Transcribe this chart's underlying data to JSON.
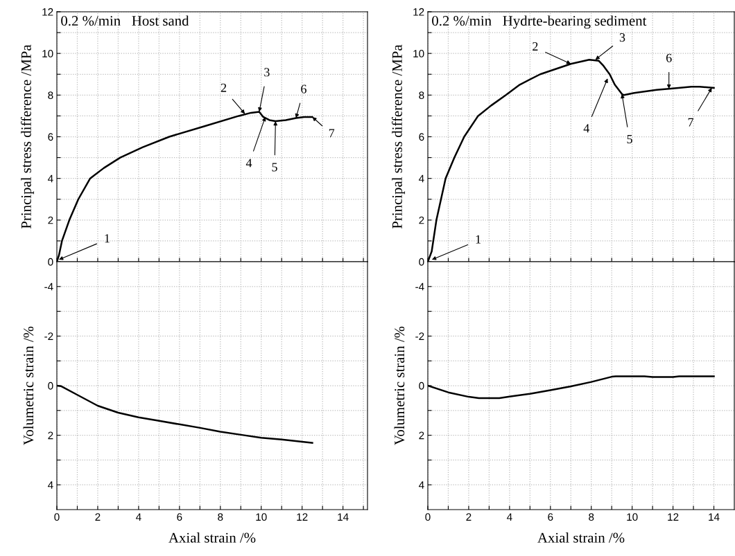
{
  "chart_data": [
    {
      "type": "line",
      "title": "0.2 %/min   Host sand",
      "ylabel": "Principal stress difference /MPa",
      "tick_labels": "y",
      "grid": true,
      "series": [
        {
          "color": "#000000",
          "x": [
            0,
            0.1,
            0.25,
            0.61,
            1.05,
            1.63,
            2.3,
            3.1,
            4.2,
            5.5,
            7.2,
            8.9,
            9.5,
            9.9,
            10.1,
            10.4,
            10.7,
            11.2,
            11.7,
            12.1,
            12.5
          ],
          "values": [
            0,
            0.3,
            1,
            2,
            3,
            4,
            4.5,
            5,
            5.5,
            6,
            6.5,
            7,
            7.15,
            7.2,
            6.95,
            6.8,
            6.75,
            6.8,
            6.9,
            6.95,
            6.95
          ]
        }
      ],
      "xlim": [
        0,
        15.2
      ],
      "ylim": [
        0,
        12
      ],
      "xticks": [
        0,
        {
          "value": 1,
          "label": null
        },
        2,
        {
          "value": 3,
          "label": null
        },
        4,
        {
          "value": 5,
          "label": null
        },
        6,
        {
          "value": 7,
          "label": null
        },
        8,
        {
          "value": 9,
          "label": null
        },
        10,
        {
          "value": 11,
          "label": null
        },
        12,
        {
          "value": 13,
          "label": null
        },
        14,
        {
          "value": 15,
          "label": null
        }
      ],
      "yticks": [
        0,
        {
          "value": 1,
          "label": null
        },
        2,
        {
          "value": 3,
          "label": null
        },
        4,
        {
          "value": 5,
          "label": null
        },
        6,
        {
          "value": 7,
          "label": null
        },
        8,
        {
          "value": 9,
          "label": null
        },
        10,
        {
          "value": 11,
          "label": null
        },
        12
      ],
      "annotations": [
        {
          "text": "1",
          "x": 0.1,
          "y": 0.1
        },
        {
          "text": "2",
          "x": 9.2,
          "y": 7.1
        },
        {
          "text": "3",
          "x": 9.9,
          "y": 7.2
        },
        {
          "text": "4",
          "x": 10.2,
          "y": 6.95
        },
        {
          "text": "5",
          "x": 10.7,
          "y": 6.75
        },
        {
          "text": "6",
          "x": 11.7,
          "y": 6.9
        },
        {
          "text": "7",
          "x": 12.5,
          "y": 6.95
        }
      ]
    },
    {
      "type": "line",
      "title": "0.2 %/min   Hydrte-bearing sediment",
      "ylabel": "Principal stress difference /MPa",
      "tick_labels": "y",
      "grid": true,
      "series": [
        {
          "color": "#000000",
          "x": [
            0,
            0.19,
            0.42,
            0.87,
            1.3,
            1.78,
            2.46,
            3.1,
            3.82,
            4.5,
            5.5,
            7.0,
            7.9,
            8.36,
            8.6,
            8.9,
            9.15,
            9.5,
            9.6,
            10.1,
            11.2,
            11.8,
            12.9,
            13.3,
            14.0
          ],
          "values": [
            0,
            0.5,
            2,
            4,
            5,
            6,
            7,
            7.5,
            8,
            8.5,
            9,
            9.5,
            9.7,
            9.65,
            9.4,
            9,
            8.5,
            8.05,
            8,
            8.1,
            8.25,
            8.3,
            8.4,
            8.4,
            8.35
          ]
        }
      ],
      "xlim": [
        0,
        15
      ],
      "ylim": [
        0,
        12
      ],
      "xticks": [
        0,
        {
          "value": 1,
          "label": null
        },
        2,
        {
          "value": 3,
          "label": null
        },
        4,
        {
          "value": 5,
          "label": null
        },
        6,
        {
          "value": 7,
          "label": null
        },
        8,
        {
          "value": 9,
          "label": null
        },
        10,
        {
          "value": 11,
          "label": null
        },
        12,
        {
          "value": 13,
          "label": null
        },
        14
      ],
      "yticks": [
        0,
        {
          "value": 1,
          "label": null
        },
        2,
        {
          "value": 3,
          "label": null
        },
        4,
        {
          "value": 5,
          "label": null
        },
        6,
        {
          "value": 7,
          "label": null
        },
        8,
        {
          "value": 9,
          "label": null
        },
        10,
        {
          "value": 11,
          "label": null
        },
        12
      ],
      "annotations": [
        {
          "text": "1",
          "x": 0.2,
          "y": 0.1
        },
        {
          "text": "2",
          "x": 7.0,
          "y": 9.5
        },
        {
          "text": "3",
          "x": 8.2,
          "y": 9.7
        },
        {
          "text": "4",
          "x": 8.8,
          "y": 8.8
        },
        {
          "text": "5",
          "x": 9.5,
          "y": 8.05
        },
        {
          "text": "6",
          "x": 11.8,
          "y": 8.3
        },
        {
          "text": "7",
          "x": 13.9,
          "y": 8.35
        }
      ]
    },
    {
      "type": "line",
      "xlabel": "Axial strain /%",
      "ylabel": "Volumetric strain /%",
      "grid": true,
      "series": [
        {
          "color": "#000000",
          "x": [
            0,
            0.2,
            1,
            2,
            3,
            4,
            5,
            6,
            7,
            8,
            9,
            10,
            11,
            12.5
          ],
          "values": [
            0,
            0.02,
            0.37,
            0.81,
            1.09,
            1.28,
            1.42,
            1.56,
            1.7,
            1.86,
            1.98,
            2.1,
            2.17,
            2.31
          ]
        }
      ],
      "xlim": [
        0,
        15.2
      ],
      "ylim": [
        5,
        -5
      ],
      "xticks": [
        0,
        {
          "value": 1,
          "label": null
        },
        2,
        {
          "value": 3,
          "label": null
        },
        4,
        {
          "value": 5,
          "label": null
        },
        6,
        {
          "value": 7,
          "label": null
        },
        8,
        {
          "value": 9,
          "label": null
        },
        10,
        {
          "value": 11,
          "label": null
        },
        12,
        {
          "value": 13,
          "label": null
        },
        14,
        {
          "value": 15,
          "label": null
        }
      ],
      "yticks": [
        -4,
        {
          "value": -3,
          "label": null
        },
        -2,
        {
          "value": -1,
          "label": null
        },
        0,
        {
          "value": 1,
          "label": null
        },
        2,
        {
          "value": 3,
          "label": null
        },
        4
      ]
    },
    {
      "type": "line",
      "xlabel": "Axial strain /%",
      "ylabel": "Volumetric strain /%",
      "grid": true,
      "series": [
        {
          "color": "#000000",
          "x": [
            0,
            1,
            2,
            2.5,
            3.5,
            4,
            5,
            6,
            7,
            8,
            9,
            9.2,
            10,
            10.6,
            11,
            12,
            12.3,
            14
          ],
          "values": [
            0,
            0.27,
            0.45,
            0.5,
            0.5,
            0.44,
            0.33,
            0.18,
            0.03,
            -0.15,
            -0.36,
            -0.38,
            -0.38,
            -0.38,
            -0.35,
            -0.35,
            -0.38,
            -0.38
          ]
        }
      ],
      "xlim": [
        0,
        15
      ],
      "ylim": [
        5,
        -5
      ],
      "xticks": [
        0,
        {
          "value": 1,
          "label": null
        },
        2,
        {
          "value": 3,
          "label": null
        },
        4,
        {
          "value": 5,
          "label": null
        },
        6,
        {
          "value": 7,
          "label": null
        },
        8,
        {
          "value": 9,
          "label": null
        },
        10,
        {
          "value": 11,
          "label": null
        },
        12,
        {
          "value": 13,
          "label": null
        },
        14
      ],
      "yticks": [
        -4,
        {
          "value": -3,
          "label": null
        },
        -2,
        {
          "value": -1,
          "label": null
        },
        0,
        {
          "value": 1,
          "label": null
        },
        2,
        {
          "value": 3,
          "label": null
        },
        4
      ]
    }
  ]
}
